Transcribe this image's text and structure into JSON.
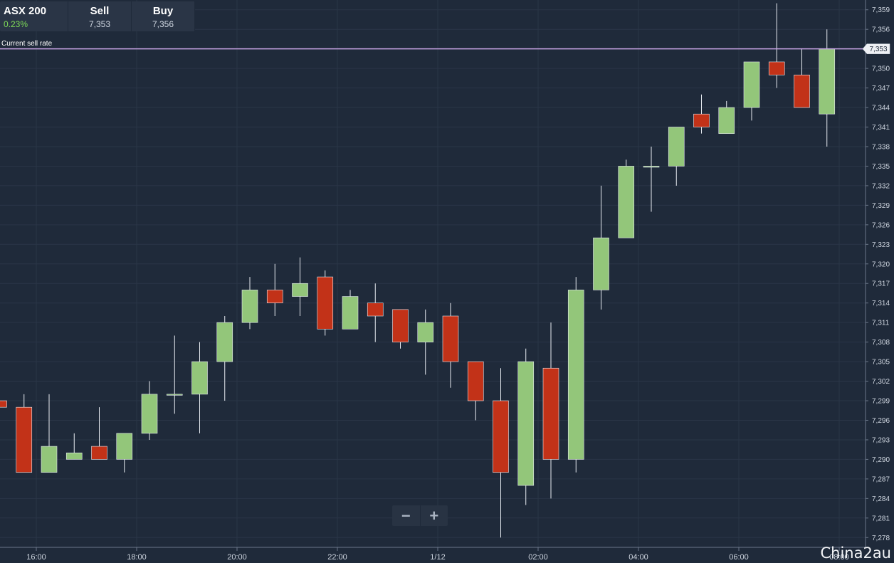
{
  "ticker": {
    "name": "ASX 200",
    "change": "0.23%",
    "sell_label": "Sell",
    "sell_value": "7,353",
    "buy_label": "Buy",
    "buy_value": "7,356"
  },
  "current_sell_rate_label": "Current sell rate",
  "current_sell_rate_value": "7,353",
  "zoom": {
    "minus_icon": "minus-icon",
    "plus_icon": "plus-icon"
  },
  "watermark": "China2au",
  "colors": {
    "background": "#1f2a3a",
    "grid": "#2a3547",
    "up": "#93c67a",
    "down": "#c23218",
    "rate_line": "#c9a4e6",
    "axis_text": "#cfd6e0"
  },
  "chart_data": {
    "type": "candlestick",
    "ylim": [
      7276.5,
      7360.5
    ],
    "y_ticks": [
      "7,278",
      "7,281",
      "7,284",
      "7,287",
      "7,290",
      "7,293",
      "7,296",
      "7,299",
      "7,302",
      "7,305",
      "7,308",
      "7,311",
      "7,314",
      "7,317",
      "7,320",
      "7,323",
      "7,326",
      "7,329",
      "7,332",
      "7,335",
      "7,338",
      "7,341",
      "7,344",
      "7,347",
      "7,350",
      "7,353",
      "7,356",
      "7,359"
    ],
    "x_ticks": [
      "16:00",
      "18:00",
      "20:00",
      "22:00",
      "1/12",
      "02:00",
      "04:00",
      "06:00",
      "08:00"
    ],
    "current_sell_rate": 7353,
    "candles": [
      {
        "o": 7299.0,
        "h": 7299.0,
        "l": 7298.0,
        "c": 7298.0
      },
      {
        "o": 7298.0,
        "h": 7300.0,
        "l": 7288.0,
        "c": 7288.0
      },
      {
        "o": 7288.0,
        "h": 7300.0,
        "l": 7288.0,
        "c": 7292.0
      },
      {
        "o": 7290.0,
        "h": 7294.0,
        "l": 7290.0,
        "c": 7291.0
      },
      {
        "o": 7292.0,
        "h": 7298.0,
        "l": 7290.0,
        "c": 7290.0
      },
      {
        "o": 7290.0,
        "h": 7294.0,
        "l": 7288.0,
        "c": 7294.0
      },
      {
        "o": 7294.0,
        "h": 7302.0,
        "l": 7293.0,
        "c": 7300.0
      },
      {
        "o": 7300.0,
        "h": 7309.0,
        "l": 7297.0,
        "c": 7300.0
      },
      {
        "o": 7300.0,
        "h": 7308.0,
        "l": 7294.0,
        "c": 7305.0
      },
      {
        "o": 7305.0,
        "h": 7312.0,
        "l": 7299.0,
        "c": 7311.0
      },
      {
        "o": 7311.0,
        "h": 7318.0,
        "l": 7310.0,
        "c": 7316.0
      },
      {
        "o": 7316.0,
        "h": 7320.0,
        "l": 7312.0,
        "c": 7314.0
      },
      {
        "o": 7315.0,
        "h": 7321.0,
        "l": 7312.0,
        "c": 7317.0
      },
      {
        "o": 7318.0,
        "h": 7319.0,
        "l": 7309.0,
        "c": 7310.0
      },
      {
        "o": 7310.0,
        "h": 7316.0,
        "l": 7310.0,
        "c": 7315.0
      },
      {
        "o": 7314.0,
        "h": 7317.0,
        "l": 7308.0,
        "c": 7312.0
      },
      {
        "o": 7313.0,
        "h": 7313.0,
        "l": 7307.0,
        "c": 7308.0
      },
      {
        "o": 7308.0,
        "h": 7313.0,
        "l": 7303.0,
        "c": 7311.0
      },
      {
        "o": 7312.0,
        "h": 7314.0,
        "l": 7301.0,
        "c": 7305.0
      },
      {
        "o": 7305.0,
        "h": 7305.0,
        "l": 7296.0,
        "c": 7299.0
      },
      {
        "o": 7299.0,
        "h": 7304.0,
        "l": 7278.0,
        "c": 7288.0
      },
      {
        "o": 7286.0,
        "h": 7307.0,
        "l": 7283.0,
        "c": 7305.0
      },
      {
        "o": 7304.0,
        "h": 7311.0,
        "l": 7284.0,
        "c": 7290.0
      },
      {
        "o": 7290.0,
        "h": 7318.0,
        "l": 7288.0,
        "c": 7316.0
      },
      {
        "o": 7316.0,
        "h": 7332.0,
        "l": 7313.0,
        "c": 7324.0
      },
      {
        "o": 7324.0,
        "h": 7336.0,
        "l": 7324.0,
        "c": 7335.0
      },
      {
        "o": 7335.0,
        "h": 7338.0,
        "l": 7328.0,
        "c": 7335.0
      },
      {
        "o": 7335.0,
        "h": 7341.0,
        "l": 7332.0,
        "c": 7341.0
      },
      {
        "o": 7343.0,
        "h": 7346.0,
        "l": 7340.0,
        "c": 7341.0
      },
      {
        "o": 7340.0,
        "h": 7345.0,
        "l": 7340.0,
        "c": 7344.0
      },
      {
        "o": 7344.0,
        "h": 7351.0,
        "l": 7342.0,
        "c": 7351.0
      },
      {
        "o": 7351.0,
        "h": 7360.0,
        "l": 7347.0,
        "c": 7349.0
      },
      {
        "o": 7349.0,
        "h": 7353.0,
        "l": 7344.0,
        "c": 7344.0
      },
      {
        "o": 7343.0,
        "h": 7356.0,
        "l": 7338.0,
        "c": 7353.0
      }
    ]
  }
}
